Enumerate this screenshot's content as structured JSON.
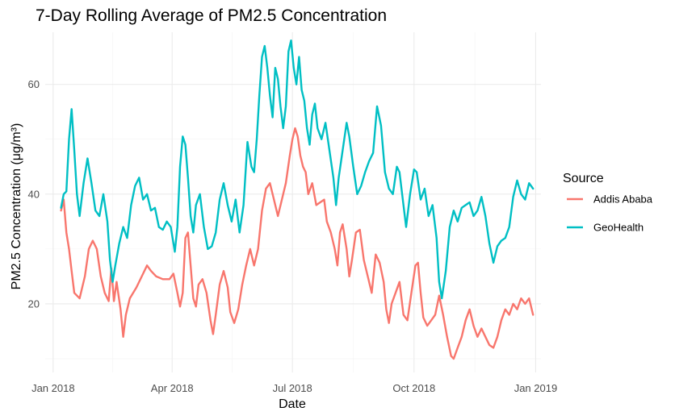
{
  "chart_data": {
    "type": "line",
    "title": "7-Day Rolling Average of PM2.5 Concentration",
    "xlabel": "Date",
    "ylabel": "PM2.5 Concentration (μg/m³)",
    "xlim": [
      "2017-12-26",
      "2019-01-05"
    ],
    "ylim": [
      7.5,
      69.5
    ],
    "x_ticks": [
      "2018-01-01",
      "2018-04-01",
      "2018-07-01",
      "2018-10-01",
      "2019-01-01"
    ],
    "x_tick_labels": [
      "Jan 2018",
      "Apr 2018",
      "Jul 2018",
      "Oct 2018",
      "Jan 2019"
    ],
    "y_ticks": [
      20,
      40,
      60
    ],
    "y_tick_labels": [
      "20",
      "40",
      "60"
    ],
    "grid": true,
    "legend": {
      "title": "Source",
      "position": "right"
    },
    "series": [
      {
        "name": "Addis Ababa",
        "color": "#F8766D",
        "points": [
          [
            "2018-01-07",
            37
          ],
          [
            "2018-01-09",
            39
          ],
          [
            "2018-01-11",
            33
          ],
          [
            "2018-01-13",
            30
          ],
          [
            "2018-01-15",
            26
          ],
          [
            "2018-01-17",
            22
          ],
          [
            "2018-01-21",
            21
          ],
          [
            "2018-01-25",
            25
          ],
          [
            "2018-01-28",
            30
          ],
          [
            "2018-01-31",
            31.5
          ],
          [
            "2018-02-03",
            30
          ],
          [
            "2018-02-06",
            25
          ],
          [
            "2018-02-09",
            22
          ],
          [
            "2018-02-12",
            20.5
          ],
          [
            "2018-02-14",
            26.5
          ],
          [
            "2018-02-16",
            20.5
          ],
          [
            "2018-02-18",
            24
          ],
          [
            "2018-02-21",
            19
          ],
          [
            "2018-02-23",
            14
          ],
          [
            "2018-02-25",
            18
          ],
          [
            "2018-02-28",
            21
          ],
          [
            "2018-03-05",
            23
          ],
          [
            "2018-03-10",
            25.5
          ],
          [
            "2018-03-13",
            27
          ],
          [
            "2018-03-16",
            26
          ],
          [
            "2018-03-20",
            25
          ],
          [
            "2018-03-25",
            24.5
          ],
          [
            "2018-03-30",
            24.5
          ],
          [
            "2018-04-02",
            25.5
          ],
          [
            "2018-04-05",
            22
          ],
          [
            "2018-04-07",
            19.5
          ],
          [
            "2018-04-09",
            22
          ],
          [
            "2018-04-11",
            32
          ],
          [
            "2018-04-13",
            33
          ],
          [
            "2018-04-15",
            27
          ],
          [
            "2018-04-17",
            21
          ],
          [
            "2018-04-19",
            19.5
          ],
          [
            "2018-04-21",
            23.5
          ],
          [
            "2018-04-24",
            24.5
          ],
          [
            "2018-04-27",
            22
          ],
          [
            "2018-04-30",
            17
          ],
          [
            "2018-05-02",
            14.5
          ],
          [
            "2018-05-04",
            18
          ],
          [
            "2018-05-07",
            23.5
          ],
          [
            "2018-05-10",
            26
          ],
          [
            "2018-05-13",
            23
          ],
          [
            "2018-05-15",
            18.5
          ],
          [
            "2018-05-18",
            16.5
          ],
          [
            "2018-05-21",
            19
          ],
          [
            "2018-05-24",
            23.5
          ],
          [
            "2018-05-27",
            27
          ],
          [
            "2018-05-30",
            30
          ],
          [
            "2018-06-02",
            27
          ],
          [
            "2018-06-05",
            30
          ],
          [
            "2018-06-08",
            37
          ],
          [
            "2018-06-11",
            41
          ],
          [
            "2018-06-14",
            42
          ],
          [
            "2018-06-17",
            39
          ],
          [
            "2018-06-20",
            36
          ],
          [
            "2018-06-23",
            39
          ],
          [
            "2018-06-26",
            42
          ],
          [
            "2018-06-29",
            47
          ],
          [
            "2018-07-01",
            50
          ],
          [
            "2018-07-03",
            52
          ],
          [
            "2018-07-05",
            50.5
          ],
          [
            "2018-07-07",
            47
          ],
          [
            "2018-07-09",
            45
          ],
          [
            "2018-07-11",
            44
          ],
          [
            "2018-07-13",
            40
          ],
          [
            "2018-07-16",
            42
          ],
          [
            "2018-07-19",
            38
          ],
          [
            "2018-07-22",
            38.5
          ],
          [
            "2018-07-25",
            39
          ],
          [
            "2018-07-27",
            35
          ],
          [
            "2018-07-30",
            33
          ],
          [
            "2018-08-02",
            30
          ],
          [
            "2018-08-04",
            27
          ],
          [
            "2018-08-06",
            33
          ],
          [
            "2018-08-08",
            34.5
          ],
          [
            "2018-08-11",
            30
          ],
          [
            "2018-08-13",
            25
          ],
          [
            "2018-08-15",
            28
          ],
          [
            "2018-08-18",
            33
          ],
          [
            "2018-08-21",
            33.5
          ],
          [
            "2018-08-24",
            28
          ],
          [
            "2018-08-27",
            25
          ],
          [
            "2018-08-30",
            22
          ],
          [
            "2018-09-02",
            29
          ],
          [
            "2018-09-05",
            27.5
          ],
          [
            "2018-09-08",
            24
          ],
          [
            "2018-09-10",
            19
          ],
          [
            "2018-09-12",
            16.5
          ],
          [
            "2018-09-14",
            20
          ],
          [
            "2018-09-17",
            22
          ],
          [
            "2018-09-20",
            24
          ],
          [
            "2018-09-23",
            18
          ],
          [
            "2018-09-26",
            17
          ],
          [
            "2018-09-29",
            22
          ],
          [
            "2018-10-02",
            27
          ],
          [
            "2018-10-04",
            27.5
          ],
          [
            "2018-10-06",
            22
          ],
          [
            "2018-10-08",
            17.5
          ],
          [
            "2018-10-11",
            16
          ],
          [
            "2018-10-14",
            17
          ],
          [
            "2018-10-17",
            18
          ],
          [
            "2018-10-20",
            21.5
          ],
          [
            "2018-10-23",
            18
          ],
          [
            "2018-10-26",
            14
          ],
          [
            "2018-10-29",
            10.5
          ],
          [
            "2018-10-31",
            10
          ],
          [
            "2018-11-03",
            12
          ],
          [
            "2018-11-06",
            14
          ],
          [
            "2018-11-09",
            17
          ],
          [
            "2018-11-12",
            19
          ],
          [
            "2018-11-15",
            16
          ],
          [
            "2018-11-18",
            14
          ],
          [
            "2018-11-21",
            15.5
          ],
          [
            "2018-11-24",
            14
          ],
          [
            "2018-11-27",
            12.5
          ],
          [
            "2018-11-30",
            12
          ],
          [
            "2018-12-03",
            14
          ],
          [
            "2018-12-06",
            17
          ],
          [
            "2018-12-09",
            19
          ],
          [
            "2018-12-12",
            18
          ],
          [
            "2018-12-15",
            20
          ],
          [
            "2018-12-18",
            19
          ],
          [
            "2018-12-21",
            21
          ],
          [
            "2018-12-24",
            20
          ],
          [
            "2018-12-27",
            21
          ],
          [
            "2018-12-30",
            18
          ]
        ]
      },
      {
        "name": "GeoHealth",
        "color": "#00BFC4",
        "points": [
          [
            "2018-01-07",
            37.5
          ],
          [
            "2018-01-09",
            40
          ],
          [
            "2018-01-11",
            40.5
          ],
          [
            "2018-01-13",
            50
          ],
          [
            "2018-01-15",
            55.5
          ],
          [
            "2018-01-17",
            48
          ],
          [
            "2018-01-19",
            40
          ],
          [
            "2018-01-21",
            36
          ],
          [
            "2018-01-24",
            42
          ],
          [
            "2018-01-27",
            46.5
          ],
          [
            "2018-01-30",
            42
          ],
          [
            "2018-02-02",
            37
          ],
          [
            "2018-02-05",
            36
          ],
          [
            "2018-02-08",
            40
          ],
          [
            "2018-02-11",
            35
          ],
          [
            "2018-02-13",
            28
          ],
          [
            "2018-02-15",
            24
          ],
          [
            "2018-02-17",
            27
          ],
          [
            "2018-02-20",
            31
          ],
          [
            "2018-02-23",
            34
          ],
          [
            "2018-02-26",
            32
          ],
          [
            "2018-03-01",
            38
          ],
          [
            "2018-03-04",
            41.5
          ],
          [
            "2018-03-07",
            43
          ],
          [
            "2018-03-10",
            39
          ],
          [
            "2018-03-13",
            40
          ],
          [
            "2018-03-16",
            37
          ],
          [
            "2018-03-19",
            37.5
          ],
          [
            "2018-03-22",
            34
          ],
          [
            "2018-03-25",
            33.5
          ],
          [
            "2018-03-28",
            35
          ],
          [
            "2018-03-31",
            34
          ],
          [
            "2018-04-03",
            29.5
          ],
          [
            "2018-04-05",
            34
          ],
          [
            "2018-04-07",
            45
          ],
          [
            "2018-04-09",
            50.5
          ],
          [
            "2018-04-11",
            49
          ],
          [
            "2018-04-13",
            43
          ],
          [
            "2018-04-15",
            36
          ],
          [
            "2018-04-17",
            33
          ],
          [
            "2018-04-19",
            38
          ],
          [
            "2018-04-22",
            40
          ],
          [
            "2018-04-25",
            34
          ],
          [
            "2018-04-28",
            30
          ],
          [
            "2018-05-01",
            30.5
          ],
          [
            "2018-05-04",
            33
          ],
          [
            "2018-05-07",
            39
          ],
          [
            "2018-05-10",
            42
          ],
          [
            "2018-05-13",
            38
          ],
          [
            "2018-05-16",
            35
          ],
          [
            "2018-05-19",
            39
          ],
          [
            "2018-05-22",
            33
          ],
          [
            "2018-05-25",
            38
          ],
          [
            "2018-05-28",
            49.5
          ],
          [
            "2018-05-31",
            45
          ],
          [
            "2018-06-02",
            44
          ],
          [
            "2018-06-04",
            50
          ],
          [
            "2018-06-06",
            58
          ],
          [
            "2018-06-08",
            65
          ],
          [
            "2018-06-10",
            67
          ],
          [
            "2018-06-12",
            63
          ],
          [
            "2018-06-14",
            58
          ],
          [
            "2018-06-16",
            54
          ],
          [
            "2018-06-18",
            63
          ],
          [
            "2018-06-20",
            61
          ],
          [
            "2018-06-22",
            56
          ],
          [
            "2018-06-24",
            52
          ],
          [
            "2018-06-26",
            56
          ],
          [
            "2018-06-28",
            66
          ],
          [
            "2018-06-30",
            68
          ],
          [
            "2018-07-02",
            63
          ],
          [
            "2018-07-04",
            60
          ],
          [
            "2018-07-06",
            65
          ],
          [
            "2018-07-08",
            59
          ],
          [
            "2018-07-10",
            57
          ],
          [
            "2018-07-12",
            52
          ],
          [
            "2018-07-14",
            49
          ],
          [
            "2018-07-16",
            54.5
          ],
          [
            "2018-07-18",
            56.5
          ],
          [
            "2018-07-20",
            52
          ],
          [
            "2018-07-23",
            50
          ],
          [
            "2018-07-26",
            53
          ],
          [
            "2018-07-29",
            48
          ],
          [
            "2018-08-01",
            43
          ],
          [
            "2018-08-03",
            38
          ],
          [
            "2018-08-05",
            43
          ],
          [
            "2018-08-08",
            48
          ],
          [
            "2018-08-11",
            53
          ],
          [
            "2018-08-13",
            50.5
          ],
          [
            "2018-08-16",
            45
          ],
          [
            "2018-08-19",
            40
          ],
          [
            "2018-08-22",
            41.5
          ],
          [
            "2018-08-25",
            44
          ],
          [
            "2018-08-28",
            46
          ],
          [
            "2018-08-31",
            47.5
          ],
          [
            "2018-09-03",
            56
          ],
          [
            "2018-09-06",
            52.5
          ],
          [
            "2018-09-09",
            44
          ],
          [
            "2018-09-12",
            41
          ],
          [
            "2018-09-15",
            40
          ],
          [
            "2018-09-18",
            45
          ],
          [
            "2018-09-20",
            44
          ],
          [
            "2018-09-23",
            38
          ],
          [
            "2018-09-25",
            34
          ],
          [
            "2018-09-28",
            40
          ],
          [
            "2018-10-01",
            44.5
          ],
          [
            "2018-10-03",
            44
          ],
          [
            "2018-10-06",
            39
          ],
          [
            "2018-10-09",
            41
          ],
          [
            "2018-10-12",
            36
          ],
          [
            "2018-10-15",
            38
          ],
          [
            "2018-10-18",
            32
          ],
          [
            "2018-10-20",
            24
          ],
          [
            "2018-10-22",
            21
          ],
          [
            "2018-10-25",
            26
          ],
          [
            "2018-10-28",
            34
          ],
          [
            "2018-10-31",
            37
          ],
          [
            "2018-11-03",
            35
          ],
          [
            "2018-11-06",
            37.5
          ],
          [
            "2018-11-09",
            38
          ],
          [
            "2018-11-12",
            38.5
          ],
          [
            "2018-11-15",
            36
          ],
          [
            "2018-11-18",
            37
          ],
          [
            "2018-11-21",
            39.5
          ],
          [
            "2018-11-24",
            36
          ],
          [
            "2018-11-27",
            31
          ],
          [
            "2018-11-30",
            27.5
          ],
          [
            "2018-12-03",
            30.5
          ],
          [
            "2018-12-06",
            31.5
          ],
          [
            "2018-12-09",
            32
          ],
          [
            "2018-12-12",
            34
          ],
          [
            "2018-12-15",
            39.5
          ],
          [
            "2018-12-18",
            42.5
          ],
          [
            "2018-12-21",
            40
          ],
          [
            "2018-12-24",
            39
          ],
          [
            "2018-12-27",
            42
          ],
          [
            "2018-12-30",
            41
          ]
        ]
      }
    ]
  }
}
